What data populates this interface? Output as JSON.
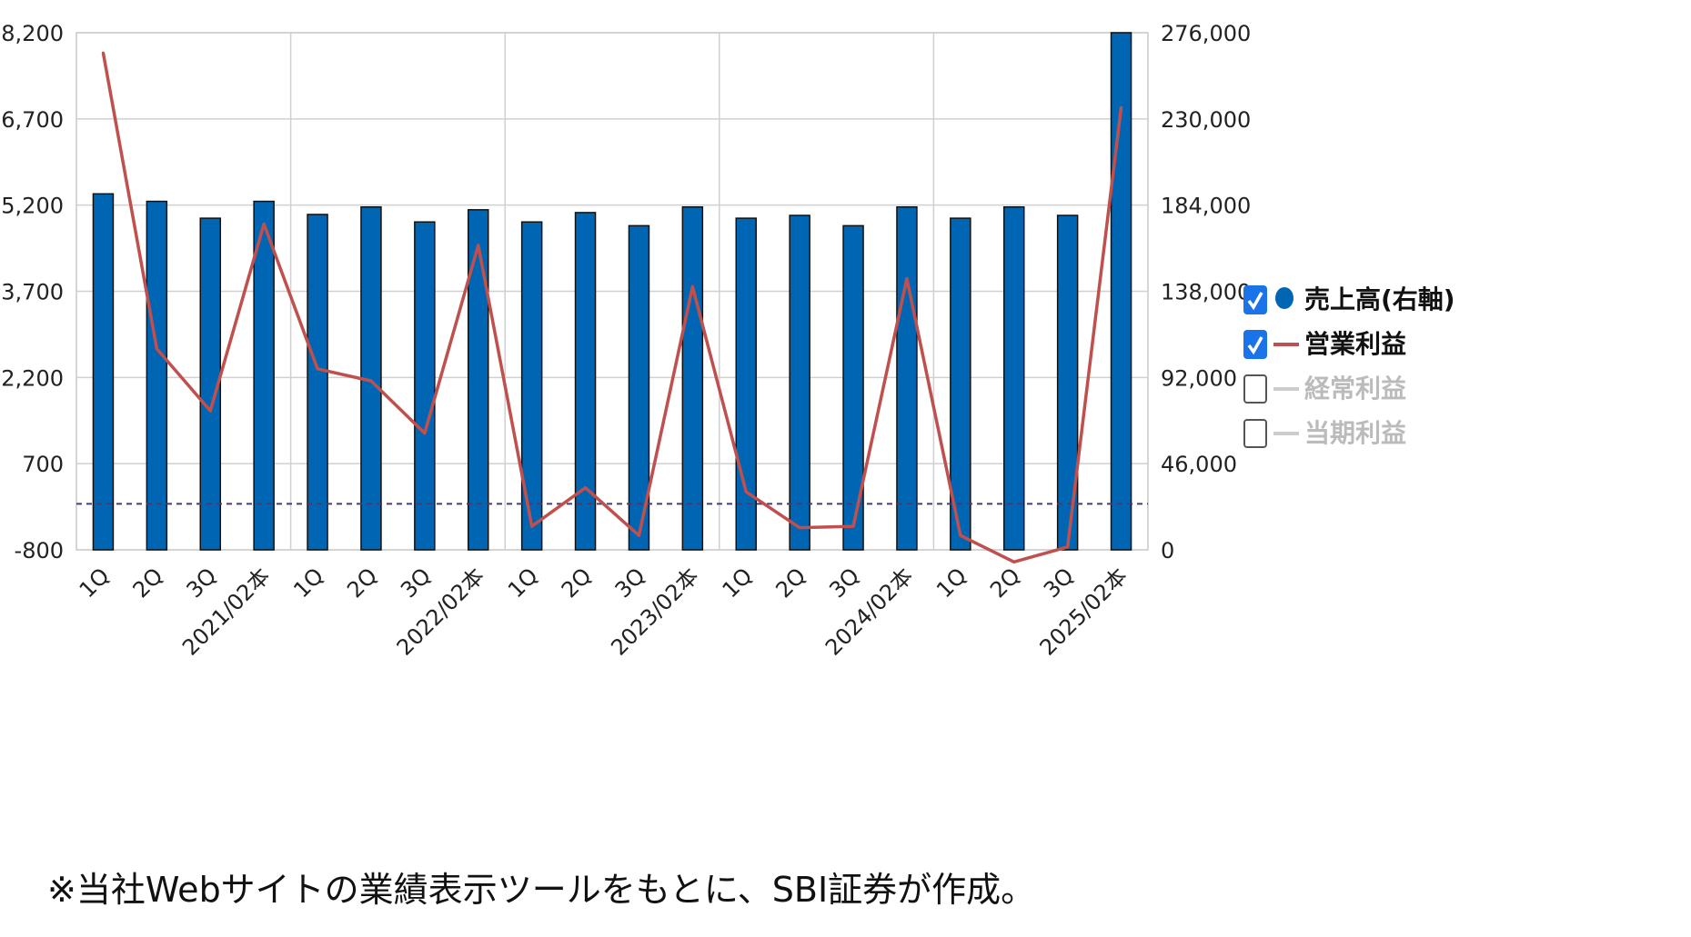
{
  "chart_data": {
    "type": "bar",
    "categories": [
      "1Q",
      "2Q",
      "3Q",
      "2021/02本",
      "1Q",
      "2Q",
      "3Q",
      "2022/02本",
      "1Q",
      "2Q",
      "3Q",
      "2023/02本",
      "1Q",
      "2Q",
      "3Q",
      "2024/02本",
      "1Q",
      "2Q",
      "3Q",
      "2025/02本"
    ],
    "series": [
      {
        "name": "売上高(右軸)",
        "type": "bar",
        "axis": "right",
        "color": "#0066b3",
        "values": [
          190000,
          186000,
          177000,
          186000,
          179000,
          183000,
          175000,
          181500,
          175000,
          180000,
          173000,
          183000,
          177000,
          178500,
          173000,
          183000,
          177000,
          183000,
          178500,
          276000
        ]
      },
      {
        "name": "営業利益",
        "type": "line",
        "axis": "left",
        "color": "#c0504d",
        "values": [
          7850,
          2700,
          1620,
          4870,
          2350,
          2140,
          1230,
          4500,
          -390,
          280,
          -550,
          3780,
          210,
          -415,
          -390,
          3920,
          -550,
          -1010,
          -750,
          6900
        ]
      }
    ],
    "legend": [
      {
        "label": "売上高(右軸)",
        "checked": true,
        "marker": "circle",
        "color": "#0066b3",
        "active": true
      },
      {
        "label": "営業利益",
        "checked": true,
        "marker": "line",
        "color": "#c0504d",
        "active": true
      },
      {
        "label": "経常利益",
        "checked": false,
        "marker": "line",
        "color": "#cccccc",
        "active": false
      },
      {
        "label": "当期利益",
        "checked": false,
        "marker": "line",
        "color": "#cccccc",
        "active": false
      }
    ],
    "y_left": {
      "ticks": [
        "8,200",
        "6,700",
        "5,200",
        "3,700",
        "2,200",
        "700",
        "-800"
      ],
      "ylim": [
        -800,
        8200
      ]
    },
    "y_right": {
      "ticks": [
        "276,000",
        "230,000",
        "184,000",
        "138,000",
        "92,000",
        "46,000",
        "0"
      ],
      "ylim": [
        0,
        276000
      ]
    },
    "zero_line_left": 0,
    "grid": true,
    "legend_position": "right"
  },
  "footnote": "※当社Webサイトの業績表示ツールをもとに、SBI証券が作成。"
}
